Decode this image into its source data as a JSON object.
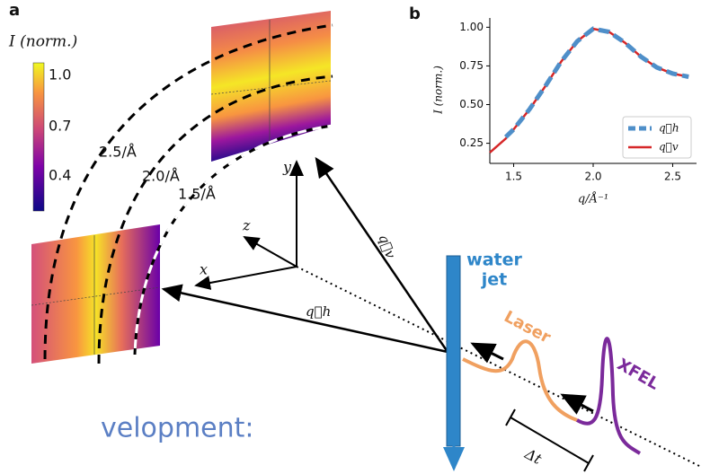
{
  "diagram": {
    "panel_a": "a",
    "colorbar": {
      "label": "I (norm.)",
      "ticks": [
        "1.0",
        "0.7",
        "0.4"
      ]
    },
    "rings": [
      "2.5/Å",
      "2.0/Å",
      "1.5/Å"
    ],
    "axes": {
      "y": "y",
      "z": "z",
      "x": "x"
    },
    "vectors": {
      "qv": "q⃗v",
      "qh": "q⃗h"
    },
    "jet": [
      "water",
      "jet"
    ],
    "laser": "Laser",
    "xfel": "XFEL",
    "delay": "Δt",
    "caption": "velopment:"
  },
  "chart_data": {
    "type": "line",
    "panel_label": "b",
    "x_label": "q/Å⁻¹",
    "y_label": "I (norm.)",
    "x": [
      1.35,
      1.45,
      1.5,
      1.6,
      1.7,
      1.8,
      1.9,
      2.0,
      2.1,
      2.2,
      2.3,
      2.4,
      2.5,
      2.6
    ],
    "series": [
      {
        "name": "q⃗h",
        "color": "#4f8fc9",
        "dash": true,
        "values": [
          null,
          0.29,
          0.34,
          0.47,
          0.62,
          0.78,
          0.91,
          0.99,
          0.97,
          0.9,
          0.81,
          0.74,
          0.7,
          0.68
        ]
      },
      {
        "name": "q⃗v",
        "color": "#d62728",
        "dash": false,
        "values": [
          0.19,
          0.28,
          0.34,
          0.47,
          0.62,
          0.78,
          0.91,
          0.99,
          0.97,
          0.9,
          0.81,
          0.74,
          0.7,
          0.68
        ]
      }
    ],
    "xlim": [
      1.35,
      2.65
    ],
    "ylim": [
      0.12,
      1.06
    ],
    "xticks": [
      1.5,
      {
        "value": 2.0,
        "label": "2.0"
      },
      2.5
    ],
    "yticks": [
      0.25,
      {
        "value": 0.5,
        "label": "0.50"
      },
      0.75,
      {
        "value": 1.0,
        "label": "1.00"
      }
    ],
    "legend": "lower right"
  }
}
